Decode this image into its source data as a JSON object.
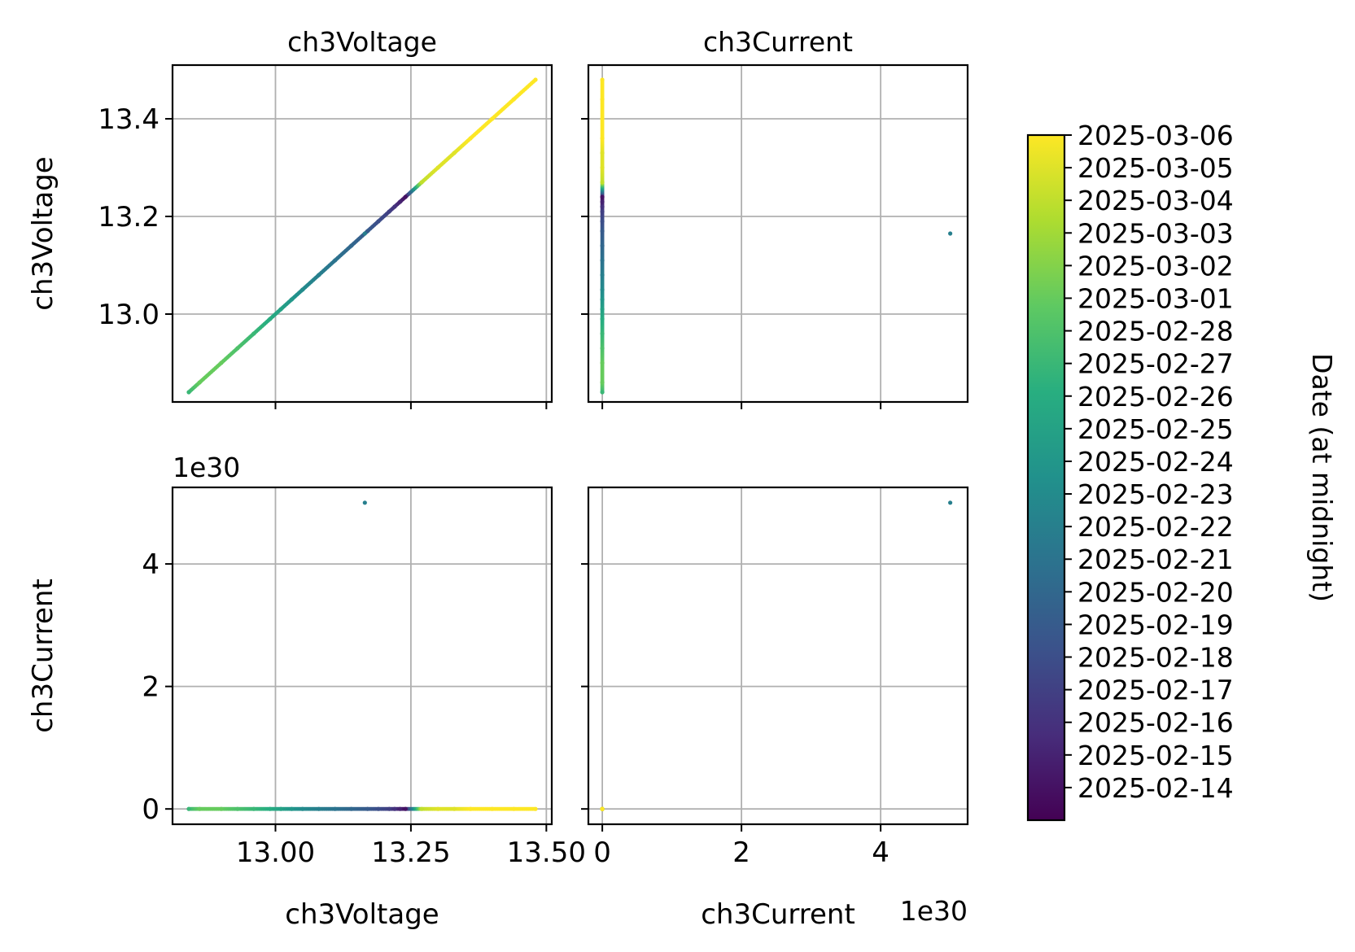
{
  "chart_data": {
    "type": "scatter",
    "layout": "pairplot 2x2",
    "color_by": "date",
    "colormap": "viridis",
    "grid": true,
    "variables": [
      "ch3Voltage",
      "ch3Current"
    ],
    "panels": [
      {
        "id": "top-left",
        "x_var": "ch3Voltage",
        "y_var": "ch3Voltage",
        "title": "ch3Voltage",
        "ylabel": "ch3Voltage",
        "xlabel": "",
        "xlim": [
          12.81,
          13.51
        ],
        "ylim": [
          12.82,
          13.51
        ],
        "x_ticks": [
          13.0,
          13.25,
          13.5
        ],
        "x_tick_labels": [
          "",
          "",
          ""
        ],
        "y_ticks": [
          13.0,
          13.2,
          13.4
        ],
        "y_tick_labels": [
          "13.0",
          "13.2",
          "13.4"
        ],
        "offset_label": ""
      },
      {
        "id": "top-right",
        "x_var": "ch3Current",
        "y_var": "ch3Voltage",
        "title": "ch3Current",
        "ylabel": "",
        "xlabel": "",
        "xlim": [
          -0.2,
          5.25
        ],
        "ylim": [
          12.82,
          13.51
        ],
        "x_ticks": [
          0,
          2,
          4
        ],
        "x_tick_labels": [
          "",
          "",
          ""
        ],
        "y_ticks": [
          13.0,
          13.2,
          13.4
        ],
        "y_tick_labels": [
          "",
          "",
          ""
        ],
        "offset_label": ""
      },
      {
        "id": "bottom-left",
        "x_var": "ch3Voltage",
        "y_var": "ch3Current",
        "title": "",
        "ylabel": "ch3Current",
        "xlabel": "ch3Voltage",
        "xlim": [
          12.81,
          13.51
        ],
        "ylim": [
          -0.25,
          5.25
        ],
        "x_ticks": [
          13.0,
          13.25,
          13.5
        ],
        "x_tick_labels": [
          "13.00",
          "13.25",
          "13.50"
        ],
        "y_ticks": [
          0,
          2,
          4
        ],
        "y_tick_labels": [
          "0",
          "2",
          "4"
        ],
        "offset_label": "1e30"
      },
      {
        "id": "bottom-right",
        "x_var": "ch3Current",
        "y_var": "ch3Current",
        "title": "",
        "ylabel": "",
        "xlabel": "ch3Current",
        "xlim": [
          -0.2,
          5.25
        ],
        "ylim": [
          -0.25,
          5.25
        ],
        "x_ticks": [
          0,
          2,
          4
        ],
        "x_tick_labels": [
          "0",
          "2",
          "4"
        ],
        "y_ticks": [
          0,
          2,
          4
        ],
        "y_tick_labels": [
          "",
          "",
          ""
        ],
        "offset_label": "1e30"
      }
    ],
    "points": [
      {
        "date": "2025-02-14",
        "ch3Voltage": 13.24,
        "ch3Current": 0
      },
      {
        "date": "2025-02-15",
        "ch3Voltage": 13.23,
        "ch3Current": 0
      },
      {
        "date": "2025-02-16",
        "ch3Voltage": 13.22,
        "ch3Current": 0
      },
      {
        "date": "2025-02-17",
        "ch3Voltage": 13.21,
        "ch3Current": 0
      },
      {
        "date": "2025-02-18",
        "ch3Voltage": 13.19,
        "ch3Current": 0
      },
      {
        "date": "2025-02-19",
        "ch3Voltage": 13.17,
        "ch3Current": 0
      },
      {
        "date": "2025-02-20",
        "ch3Voltage": 13.14,
        "ch3Current": 0
      },
      {
        "date": "2025-02-21",
        "ch3Voltage": 13.11,
        "ch3Current": 0
      },
      {
        "date": "2025-02-22",
        "ch3Voltage": 13.08,
        "ch3Current": 0
      },
      {
        "date": "2025-02-22",
        "ch3Voltage": 13.165,
        "ch3Current": 5.0
      },
      {
        "date": "2025-02-23",
        "ch3Voltage": 13.05,
        "ch3Current": 0
      },
      {
        "date": "2025-02-24",
        "ch3Voltage": 13.03,
        "ch3Current": 0
      },
      {
        "date": "2025-02-25",
        "ch3Voltage": 13.01,
        "ch3Current": 0
      },
      {
        "date": "2025-02-26",
        "ch3Voltage": 12.99,
        "ch3Current": 0
      },
      {
        "date": "2025-02-27",
        "ch3Voltage": 12.96,
        "ch3Current": 0
      },
      {
        "date": "2025-02-28",
        "ch3Voltage": 12.93,
        "ch3Current": 0
      },
      {
        "date": "2025-03-01",
        "ch3Voltage": 12.9,
        "ch3Current": 0
      },
      {
        "date": "2025-03-01",
        "ch3Voltage": 12.86,
        "ch3Current": 0
      },
      {
        "date": "2025-02-27",
        "ch3Voltage": 12.84,
        "ch3Current": 0
      },
      {
        "date": "2025-03-04",
        "ch3Voltage": 13.27,
        "ch3Current": 0
      },
      {
        "date": "2025-03-05",
        "ch3Voltage": 13.3,
        "ch3Current": 0
      },
      {
        "date": "2025-03-05",
        "ch3Voltage": 13.33,
        "ch3Current": 0
      },
      {
        "date": "2025-03-06",
        "ch3Voltage": 13.36,
        "ch3Current": 0
      },
      {
        "date": "2025-03-06",
        "ch3Voltage": 13.4,
        "ch3Current": 0
      },
      {
        "date": "2025-03-06",
        "ch3Voltage": 13.44,
        "ch3Current": 0
      },
      {
        "date": "2025-03-06",
        "ch3Voltage": 13.48,
        "ch3Current": 0
      }
    ],
    "colorbar": {
      "label": "Date (at midnight)",
      "range": [
        "2025-02-13",
        "2025-03-06"
      ],
      "tick_labels": [
        "2025-02-14",
        "2025-02-15",
        "2025-02-16",
        "2025-02-17",
        "2025-02-18",
        "2025-02-19",
        "2025-02-20",
        "2025-02-21",
        "2025-02-22",
        "2025-02-23",
        "2025-02-24",
        "2025-02-25",
        "2025-02-26",
        "2025-02-27",
        "2025-02-28",
        "2025-03-01",
        "2025-03-02",
        "2025-03-03",
        "2025-03-04",
        "2025-03-05",
        "2025-03-06"
      ]
    }
  }
}
